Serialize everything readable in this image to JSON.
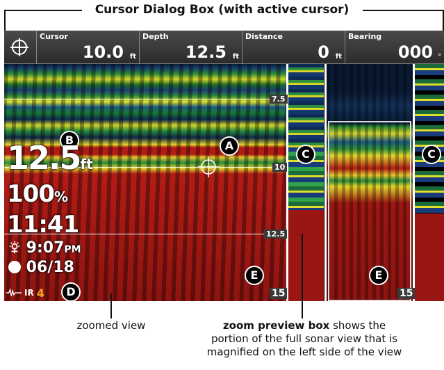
{
  "header_callout": "Cursor Dialog Box (with active cursor)",
  "cursor_bar": {
    "fields": [
      {
        "label": "Cursor",
        "value": "10.0",
        "unit": "ft"
      },
      {
        "label": "Depth",
        "value": "12.5",
        "unit": "ft"
      },
      {
        "label": "Distance",
        "value": "0",
        "unit": "ft"
      },
      {
        "label": "Bearing",
        "value": "000",
        "unit": "°"
      }
    ]
  },
  "depth_scale": [
    "7.5",
    "10",
    "12.5",
    "15"
  ],
  "bottom_right_label": "15",
  "readouts": {
    "depth_value": "12.5",
    "depth_unit": "ft",
    "percent_value": "100",
    "percent_unit": "%",
    "time": "11:41",
    "sunset_time": "9:07",
    "sunset_ampm": "PM",
    "date": "06/18",
    "ir_label": "IR",
    "ir_value": "4"
  },
  "markers": [
    "A",
    "B",
    "C",
    "C",
    "D",
    "E",
    "E"
  ],
  "captions": {
    "zoomed_view": "zoomed view",
    "zoom_preview_bold": "zoom preview box",
    "zoom_preview_rest_line1": " shows the",
    "zoom_preview_line2": "portion of the full sonar view that is",
    "zoom_preview_line3": "magnified on the left side of the view"
  },
  "colors": {
    "sonar_red": "#b31c16",
    "sonar_yellow": "#e3d52c",
    "sonar_green": "#2d8a3a",
    "sonar_blue": "#1b3f74",
    "ir_accent": "#f5a623"
  }
}
